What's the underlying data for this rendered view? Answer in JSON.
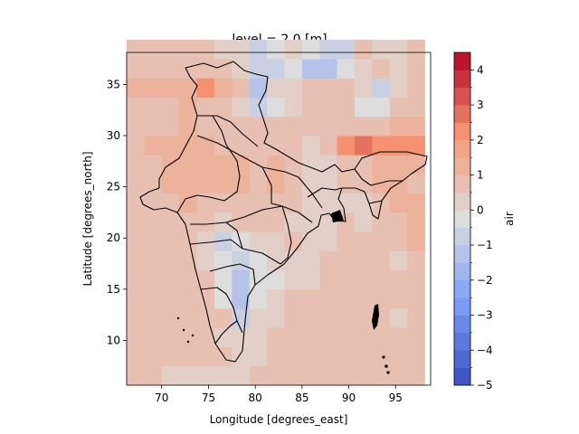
{
  "chart_data": {
    "type": "heatmap",
    "title": "level = 2.0 [m]",
    "xlabel": "Longitude [degrees_east]",
    "ylabel": "Latitude [degrees_north]",
    "colorbar_label": "air",
    "colormap": "coolwarm",
    "xlim": [
      66.25,
      98.75
    ],
    "ylim": [
      5.625,
      38.125
    ],
    "x_ticks": [
      70,
      75,
      80,
      85,
      90,
      95
    ],
    "y_ticks": [
      10,
      15,
      20,
      25,
      30,
      35
    ],
    "colorbar_ticks": [
      -5,
      -4,
      -3,
      -2,
      -1,
      0,
      1,
      2,
      3,
      4
    ],
    "colorbar_range": [
      -5,
      4.5
    ],
    "colorbar_levels": 19,
    "lon_start": 66.25,
    "lat_start": 5.625,
    "cell_lon": 1.875,
    "cell_lat": 1.875,
    "row_order": "south_to_north",
    "values": [
      [
        0.8,
        0.8,
        0.3,
        0.3,
        0.3,
        0.3,
        0.3,
        0.8,
        0.8,
        0.8,
        0.8,
        0.8,
        0.8,
        0.8,
        0.8,
        0.8,
        0.8
      ],
      [
        0.8,
        0.8,
        0.8,
        0.8,
        0.8,
        0.8,
        0.3,
        0.3,
        0.8,
        0.8,
        0.8,
        0.8,
        0.8,
        0.8,
        0.8,
        0.8,
        0.8
      ],
      [
        0.8,
        0.8,
        0.8,
        0.8,
        0.8,
        0.3,
        0.3,
        0.3,
        0.8,
        0.8,
        0.8,
        0.8,
        0.8,
        0.8,
        0.8,
        0.8,
        0.8
      ],
      [
        0.8,
        0.8,
        0.8,
        0.8,
        0.8,
        0.8,
        -0.8,
        0.3,
        0.3,
        0.8,
        0.8,
        0.8,
        0.8,
        0.8,
        0.8,
        0.3,
        0.8
      ],
      [
        0.8,
        0.8,
        0.8,
        0.8,
        0.8,
        -0.3,
        -1.3,
        -0.3,
        0.3,
        0.8,
        0.8,
        0.8,
        0.8,
        0.8,
        0.8,
        0.8,
        0.8
      ],
      [
        0.8,
        0.8,
        0.8,
        0.8,
        0.8,
        -0.3,
        -1.3,
        -0.3,
        -0.3,
        0.3,
        0.3,
        0.8,
        0.8,
        0.8,
        0.8,
        0.8,
        0.8
      ],
      [
        0.8,
        0.8,
        0.8,
        0.8,
        0.3,
        -0.3,
        -0.8,
        -0.3,
        0.3,
        0.3,
        0.3,
        0.8,
        0.8,
        0.8,
        0.8,
        0.3,
        0.8
      ],
      [
        0.8,
        0.8,
        0.8,
        0.8,
        0.3,
        -0.8,
        -0.3,
        0.3,
        0.3,
        0.8,
        0.3,
        0.3,
        0.8,
        0.8,
        0.8,
        0.8,
        1.3
      ],
      [
        0.8,
        0.8,
        0.8,
        0.8,
        0.8,
        0.3,
        0.8,
        0.8,
        0.8,
        0.3,
        0.3,
        0.3,
        0.8,
        0.3,
        0.8,
        0.8,
        1.3
      ],
      [
        0.8,
        0.8,
        0.8,
        1.3,
        0.8,
        0.8,
        0.8,
        0.8,
        0.8,
        0.8,
        0.3,
        0.3,
        0.3,
        0.3,
        0.8,
        1.3,
        1.3
      ],
      [
        0.8,
        0.8,
        1.3,
        1.3,
        1.3,
        1.3,
        1.3,
        0.8,
        1.3,
        0.8,
        0.3,
        0.3,
        0.8,
        0.8,
        1.3,
        1.3,
        0.8
      ],
      [
        0.8,
        0.8,
        1.3,
        1.3,
        1.3,
        1.3,
        1.3,
        0.8,
        1.3,
        0.8,
        0.3,
        0.3,
        0.8,
        0.8,
        1.3,
        1.3,
        1.3
      ],
      [
        0.8,
        1.3,
        1.3,
        1.3,
        1.3,
        0.8,
        0.8,
        0.8,
        0.8,
        0.8,
        0.3,
        0.8,
        2.3,
        2.8,
        2.3,
        2.3,
        2.3
      ],
      [
        0.8,
        0.8,
        0.8,
        1.3,
        0.8,
        0.8,
        0.8,
        0.8,
        0.8,
        0.8,
        0.8,
        0.8,
        0.8,
        0.8,
        0.8,
        1.3,
        1.3
      ],
      [
        0.8,
        0.8,
        0.8,
        1.3,
        0.8,
        0.8,
        0.3,
        -0.8,
        -0.3,
        0.3,
        0.8,
        0.8,
        0.8,
        -0.3,
        -0.3,
        0.8,
        0.8
      ],
      [
        1.3,
        1.3,
        1.3,
        1.3,
        2.3,
        1.3,
        0.8,
        -1.3,
        0.3,
        0.3,
        0.8,
        0.8,
        0.8,
        0.3,
        -0.8,
        0.3,
        0.8
      ],
      [
        0.8,
        0.8,
        0.8,
        0.8,
        0.8,
        0.8,
        0.3,
        -0.8,
        -0.8,
        -0.3,
        -1.3,
        -1.3,
        -0.3,
        0.3,
        0.8,
        0.3,
        0.8
      ],
      [
        0.8,
        0.8,
        0.8,
        0.8,
        0.8,
        0.3,
        0.3,
        -0.8,
        -0.3,
        0.3,
        -0.3,
        -0.8,
        -0.8,
        0.8,
        0.3,
        0.3,
        0.8
      ]
    ]
  }
}
